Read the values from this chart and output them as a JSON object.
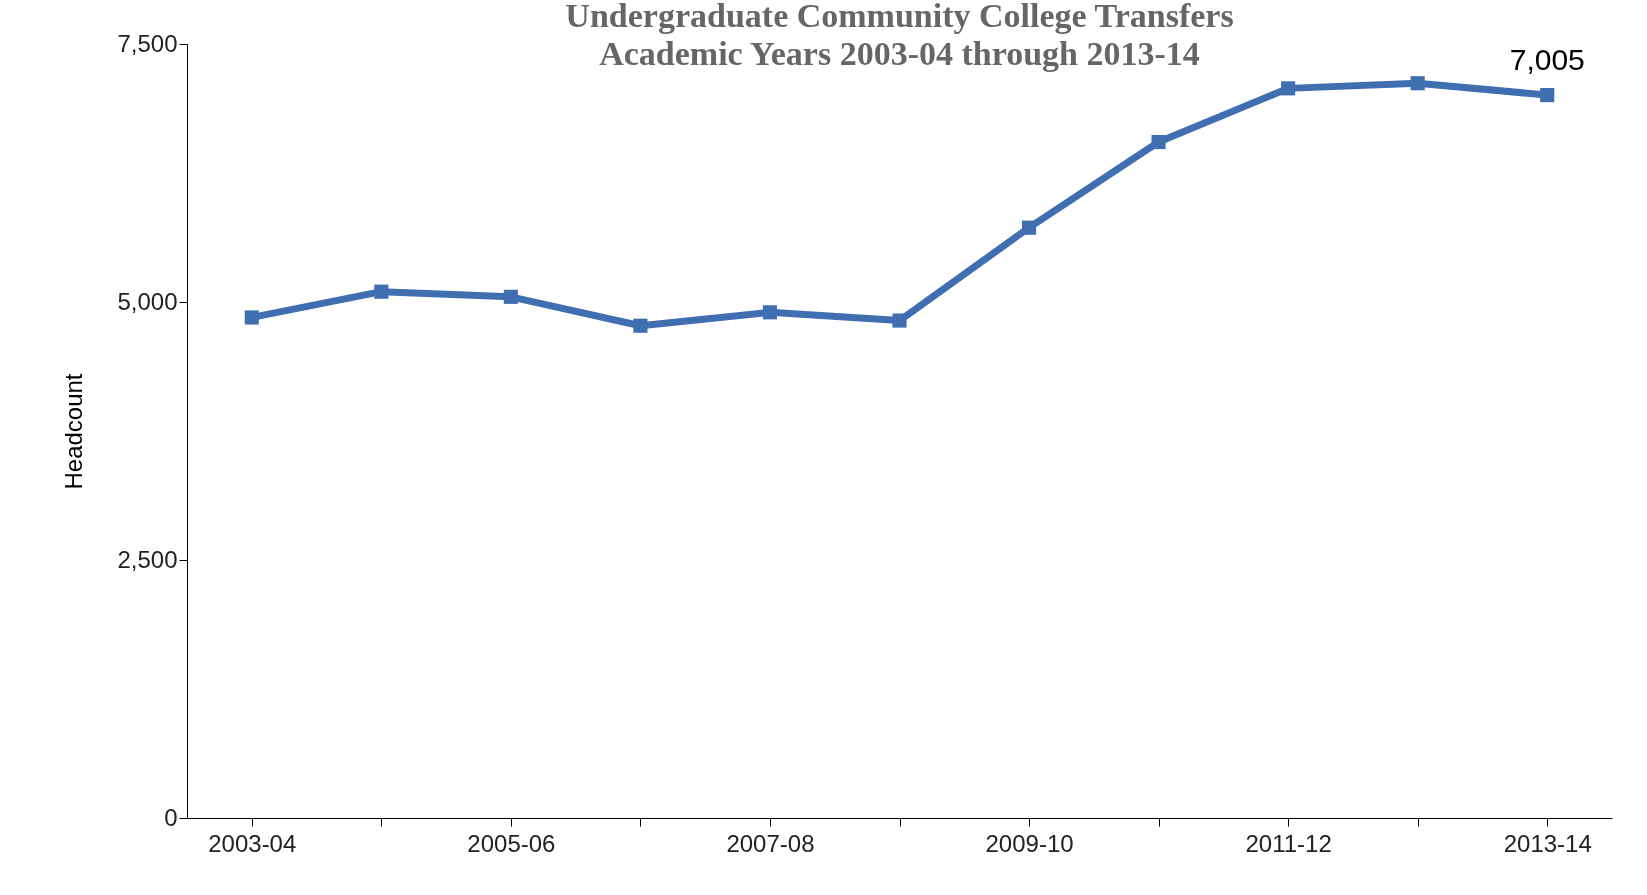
{
  "chart_data": {
    "type": "line",
    "title": "Undergraduate Community College Transfers",
    "subtitle": "Academic Years 2003-04 through 2013-14",
    "ylabel": "Headcount",
    "categories": [
      "2003-04",
      null,
      "2005-06",
      null,
      "2007-08",
      null,
      "2009-10",
      null,
      "2011-12",
      null,
      "2013-14"
    ],
    "series": [
      {
        "color": "#3f6fb0",
        "values": [
          4850,
          5100,
          5050,
          4770,
          4900,
          4820,
          5720,
          6550,
          7070,
          7120,
          7005
        ],
        "value_labels": [
          null,
          null,
          null,
          null,
          null,
          null,
          null,
          null,
          null,
          null,
          "7,005"
        ]
      }
    ],
    "ylim": [
      0,
      7500
    ],
    "yticks": [
      0,
      {
        "value": 2500,
        "label": "2,500"
      },
      {
        "value": 5000,
        "label": "5,000"
      },
      {
        "value": 7500,
        "label": "7,500"
      }
    ],
    "grid": false,
    "marker": "square",
    "line_style": "solid"
  }
}
